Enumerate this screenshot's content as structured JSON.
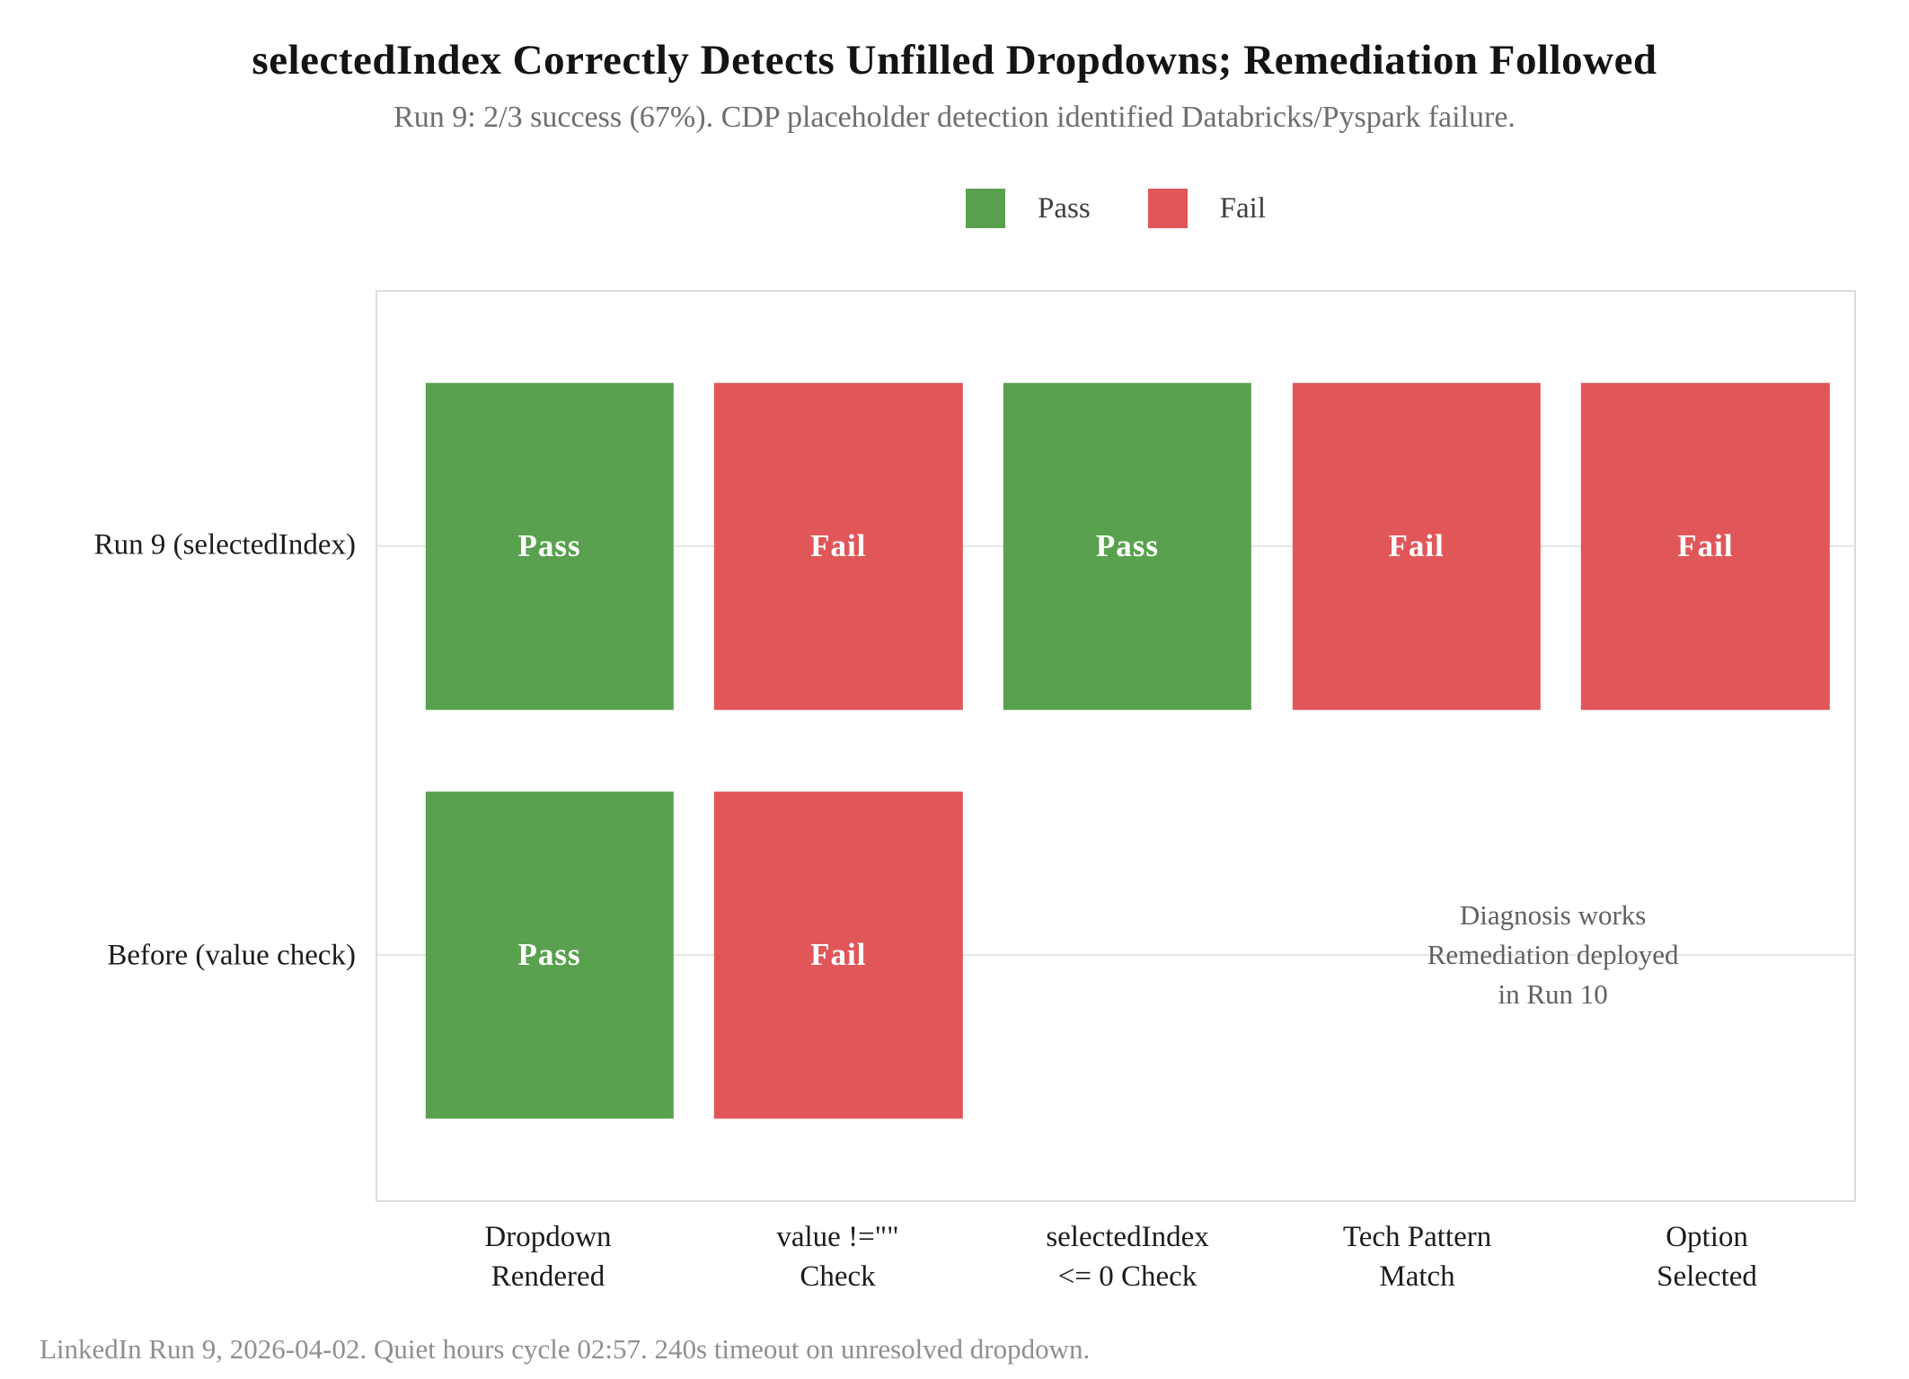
{
  "footer": {
    "text": "LinkedIn Run 9, 2026-04-02. Quiet hours cycle 02:57. 240s timeout on unresolved dropdown."
  },
  "colors": {
    "pass": "#59A14F",
    "fail": "#E15759",
    "grid": "#e7e7e7",
    "plot_border": "#dcdcdc"
  },
  "chart_data": {
    "type": "heatmap",
    "title": "selectedIndex Correctly Detects Unfilled Dropdowns; Remediation Followed",
    "subtitle": "Run 9: 2/3 success (67%). CDP placeholder detection identified Databricks/Pyspark failure.",
    "categories": [
      "Dropdown\nRendered",
      "value !=\"\"\nCheck",
      "selectedIndex\n<= 0 Check",
      "Tech Pattern\nMatch",
      "Option\nSelected"
    ],
    "rows": [
      {
        "label": "Run 9 (selectedIndex)",
        "results": [
          "Pass",
          "Fail",
          "Pass",
          "Fail",
          "Fail"
        ]
      },
      {
        "label": "Before (value check)",
        "results": [
          "Pass",
          "Fail",
          null,
          null,
          null
        ]
      }
    ],
    "legend": [
      {
        "label": "Pass",
        "color": "#59A14F"
      },
      {
        "label": "Fail",
        "color": "#E15759"
      }
    ],
    "legend_position": "top center",
    "grid": "horizontal line at each row center, drawn behind cells",
    "annotation": {
      "text": "Diagnosis works\nRemediation deployed\nin Run 10",
      "anchor": "centered between Tech Pattern Match and Option Selected columns on the Before (value check) row"
    }
  }
}
